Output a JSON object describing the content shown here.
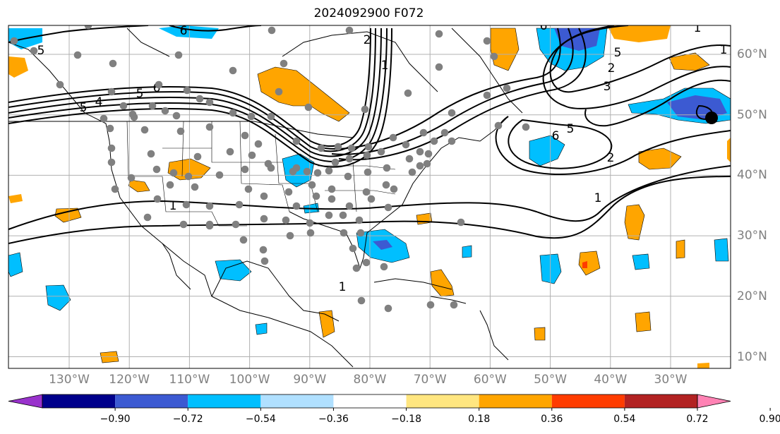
{
  "title": "2024092900 F072",
  "map": {
    "lon_labels": [
      {
        "lon": -130,
        "label": "130°W"
      },
      {
        "lon": -120,
        "label": "120°W"
      },
      {
        "lon": -110,
        "label": "110°W"
      },
      {
        "lon": -100,
        "label": "100°W"
      },
      {
        "lon": -90,
        "label": "90°W"
      },
      {
        "lon": -80,
        "label": "80°W"
      },
      {
        "lon": -70,
        "label": "70°W"
      },
      {
        "lon": -60,
        "label": "60°W"
      },
      {
        "lon": -50,
        "label": "50°W"
      },
      {
        "lon": -40,
        "label": "40°W"
      },
      {
        "lon": -30,
        "label": "30°W"
      }
    ],
    "lat_labels": [
      {
        "lat": 60,
        "label": "60°N"
      },
      {
        "lat": 50,
        "label": "50°N"
      },
      {
        "lat": 40,
        "label": "40°N"
      },
      {
        "lat": 30,
        "label": "30°N"
      },
      {
        "lat": 20,
        "label": "20°N"
      },
      {
        "lat": 10,
        "label": "10°N"
      }
    ],
    "contour_labels": [
      "1",
      "1",
      "2",
      "5",
      "6",
      "1",
      "2",
      "3",
      "5",
      "6",
      "5",
      "1",
      "6",
      "5",
      "1",
      "2",
      "4",
      "5",
      "6",
      "1"
    ],
    "colors": {
      "grid": "#b0b0b0",
      "station_dot": "#808080",
      "contour": "#000000",
      "coast": "#000000"
    }
  },
  "colorbar": {
    "ticks": [
      "−0.90",
      "−0.72",
      "−0.54",
      "−0.36",
      "−0.18",
      "0.18",
      "0.36",
      "0.54",
      "0.72",
      "0.90"
    ],
    "colors": [
      "#9932cc",
      "#00008b",
      "#3c5ad2",
      "#00bfff",
      "#b0e0ff",
      "#ffffff",
      "#ffe680",
      "#ffa500",
      "#ff3c00",
      "#b22222",
      "#ff82b4"
    ]
  }
}
